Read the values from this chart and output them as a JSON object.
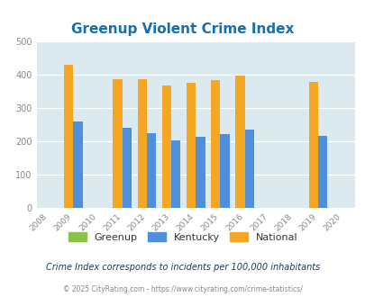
{
  "title": "Greenup Violent Crime Index",
  "years": [
    2008,
    2009,
    2010,
    2011,
    2012,
    2013,
    2014,
    2015,
    2016,
    2017,
    2018,
    2019,
    2020
  ],
  "greenup": [
    0,
    0,
    0,
    0,
    0,
    0,
    0,
    0,
    0,
    0,
    0,
    0,
    0
  ],
  "kentucky": [
    0,
    260,
    0,
    240,
    224,
    202,
    215,
    221,
    235,
    0,
    0,
    216,
    0
  ],
  "national": [
    0,
    430,
    0,
    387,
    387,
    367,
    376,
    383,
    397,
    0,
    0,
    379,
    0
  ],
  "kentucky_color": "#4f8fdc",
  "national_color": "#f5a623",
  "greenup_color": "#8bc34a",
  "bg_color": "#dce9ee",
  "ylim": [
    0,
    500
  ],
  "yticks": [
    0,
    100,
    200,
    300,
    400,
    500
  ],
  "title_color": "#1a6fa8",
  "title_fontsize": 11,
  "legend_labels": [
    "Greenup",
    "Kentucky",
    "National"
  ],
  "footnote1": "Crime Index corresponds to incidents per 100,000 inhabitants",
  "footnote2": "© 2025 CityRating.com - https://www.cityrating.com/crime-statistics/",
  "bar_width": 0.38,
  "grid_color": "#ffffff",
  "tick_label_color": "#888888",
  "footnote1_color": "#1a3a5c",
  "footnote2_color": "#888888"
}
